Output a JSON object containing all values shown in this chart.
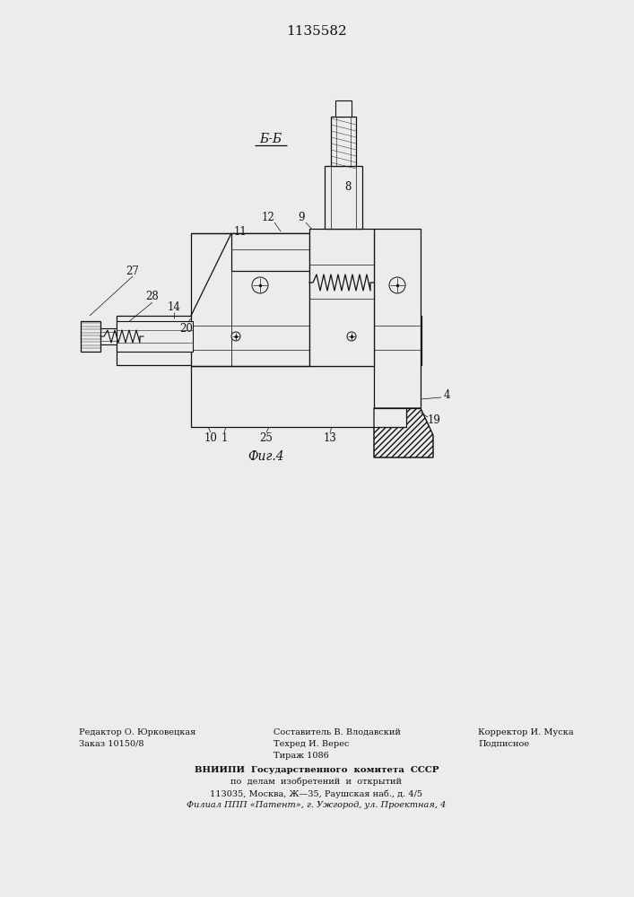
{
  "patent_number": "1135582",
  "section_label": "Б-Б",
  "fig_label": "Фиг.4",
  "bg_color": "#ececec",
  "line_color": "#111111",
  "bottom_left_line1": "Редактор О. Юрковецкая",
  "bottom_left_line2": "Заказ 10150/8",
  "bottom_center_line1": "Составитель В. Влодавский",
  "bottom_center_line2": "Техред И. Верес",
  "bottom_center_line3": "Тираж 1086",
  "bottom_right_line1": "Корректор И. Муска",
  "bottom_right_line2": "Подписное",
  "bold_line1": "ВНИИПИ  Государственного  комитета  СССР",
  "bold_line2": "по  делам  изобретений  и  открытий",
  "addr_line1": "113035, Москва, Ж—35, Раушская наб., д. 4/5",
  "addr_line2": "Филиал ППП «Патент», г. Ужгород, ул. Проектная, 4"
}
